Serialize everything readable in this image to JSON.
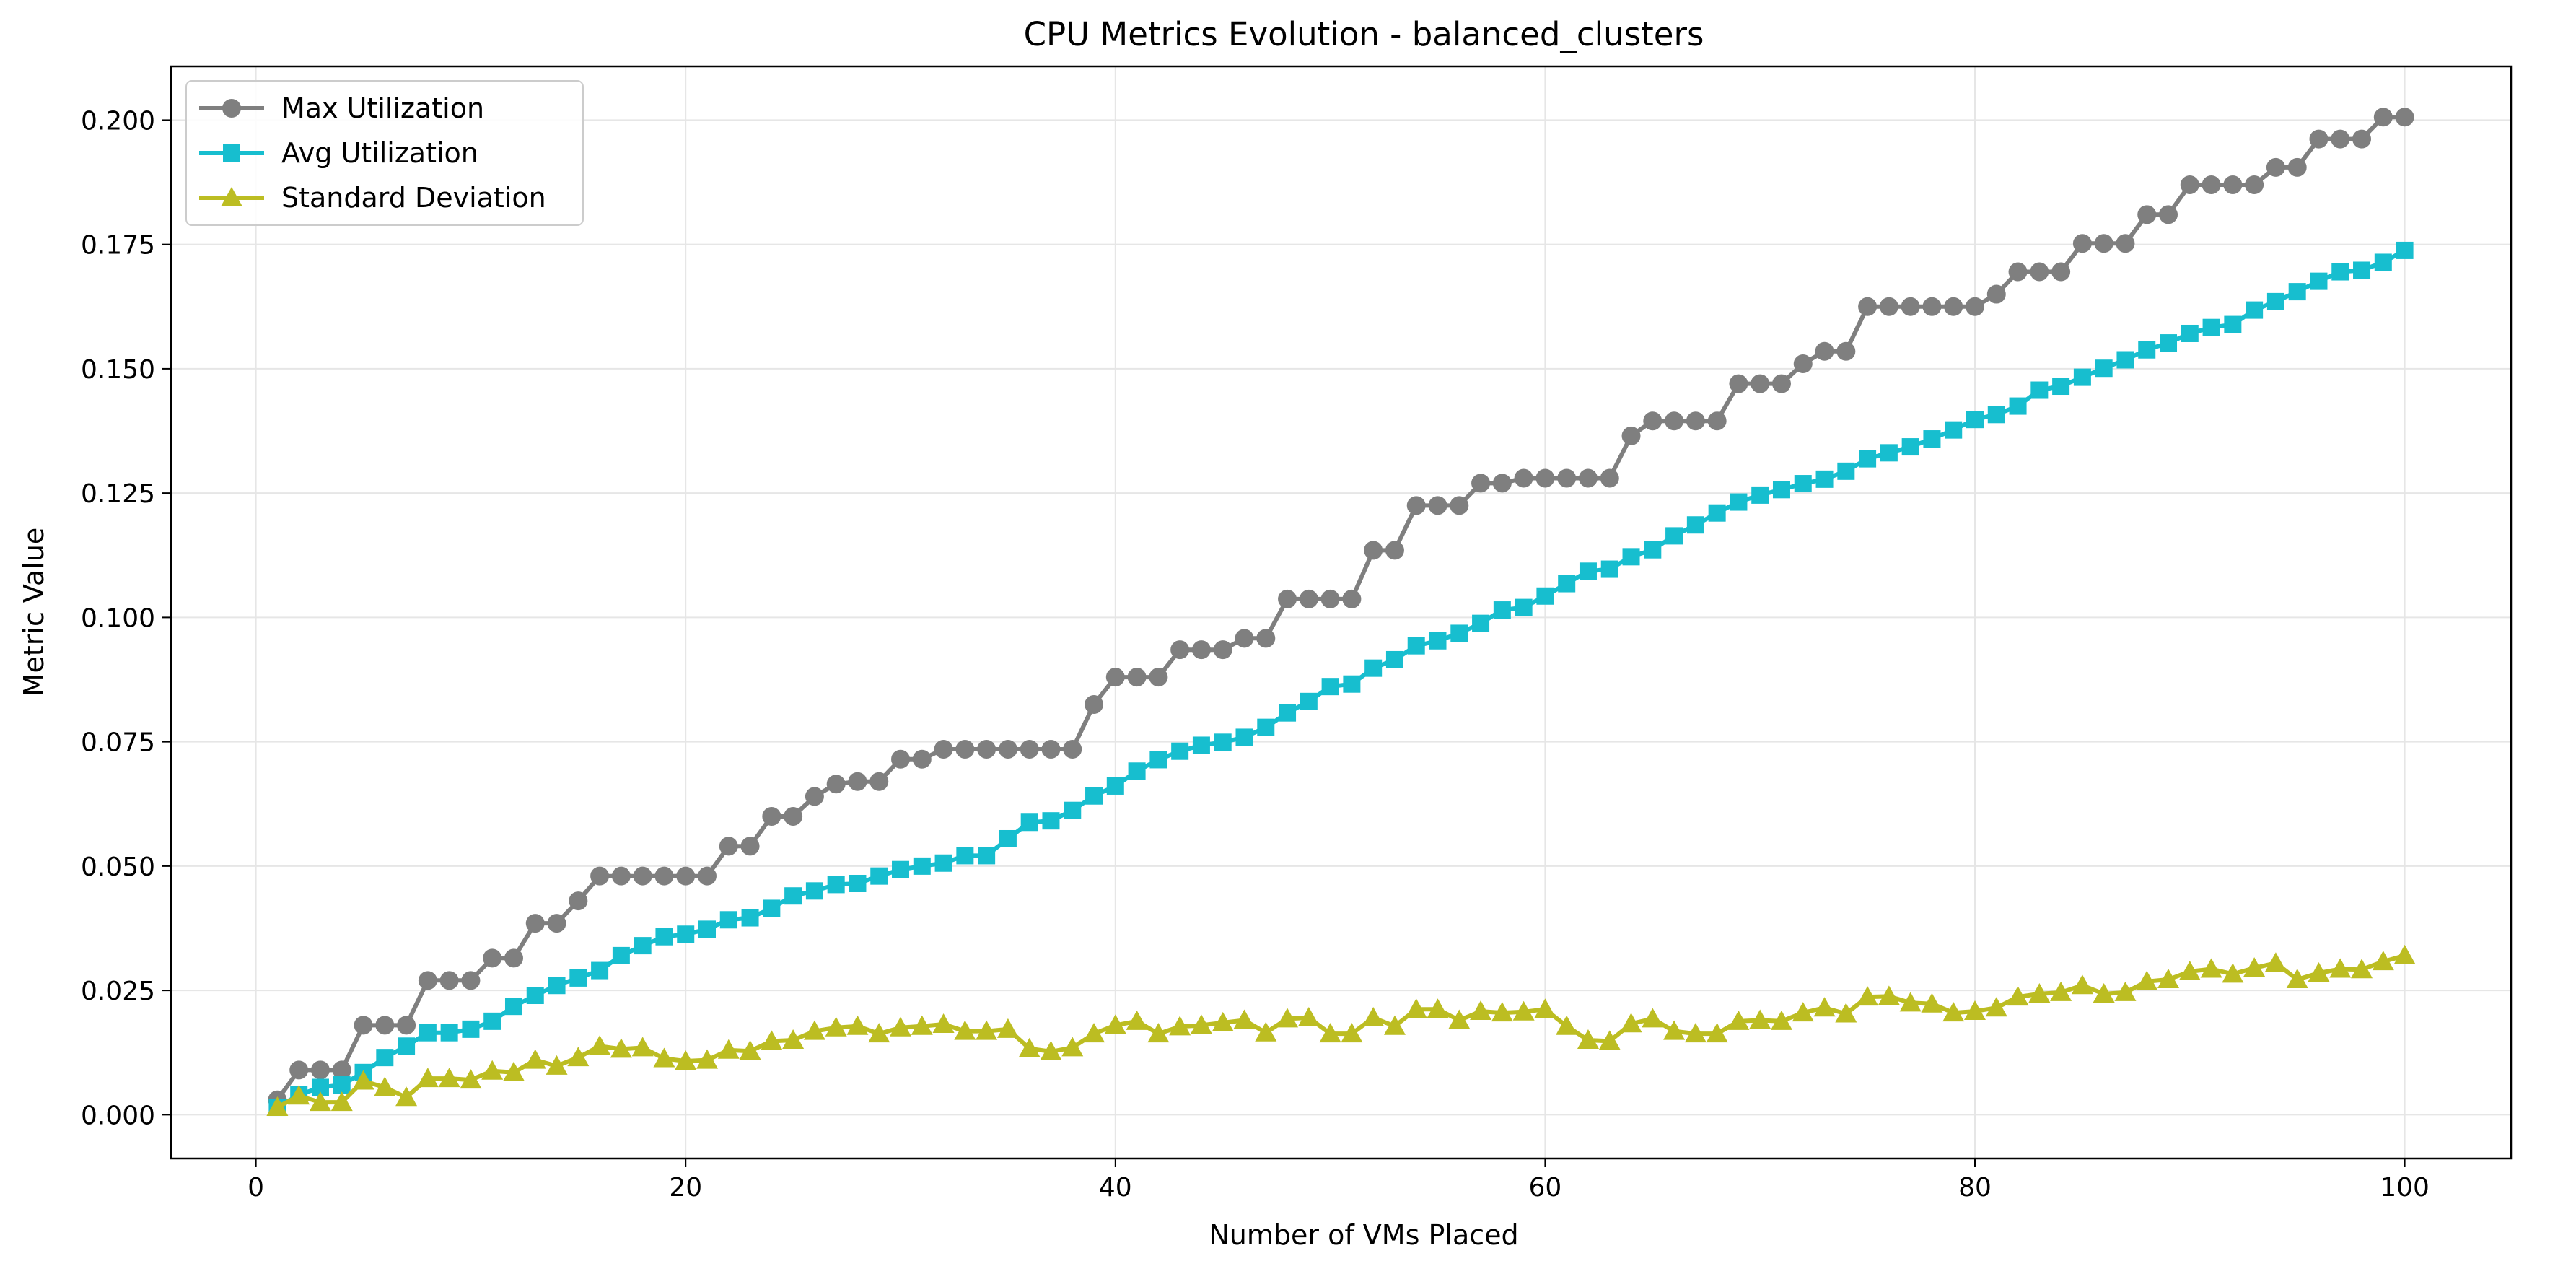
{
  "chart_data": {
    "type": "line",
    "title": "CPU Metrics Evolution - balanced_clusters",
    "xlabel": "Number of VMs Placed",
    "ylabel": "Metric Value",
    "xlim": [
      -3.95,
      104.95
    ],
    "ylim": [
      -0.0088,
      0.2108
    ],
    "xticks": [
      0,
      20,
      40,
      60,
      80,
      100
    ],
    "xtick_labels": [
      "0",
      "20",
      "40",
      "60",
      "80",
      "100"
    ],
    "yticks": [
      0,
      0.025,
      0.05,
      0.075,
      0.1,
      0.125,
      0.15,
      0.175,
      0.2
    ],
    "ytick_labels": [
      "0.000",
      "0.025",
      "0.050",
      "0.075",
      "0.100",
      "0.125",
      "0.150",
      "0.175",
      "0.200"
    ],
    "grid": true,
    "legend_position": "top-left",
    "x": [
      1,
      2,
      3,
      4,
      5,
      6,
      7,
      8,
      9,
      10,
      11,
      12,
      13,
      14,
      15,
      16,
      17,
      18,
      19,
      20,
      21,
      22,
      23,
      24,
      25,
      26,
      27,
      28,
      29,
      30,
      31,
      32,
      33,
      34,
      35,
      36,
      37,
      38,
      39,
      40,
      41,
      42,
      43,
      44,
      45,
      46,
      47,
      48,
      49,
      50,
      51,
      52,
      53,
      54,
      55,
      56,
      57,
      58,
      59,
      60,
      61,
      62,
      63,
      64,
      65,
      66,
      67,
      68,
      69,
      70,
      71,
      72,
      73,
      74,
      75,
      76,
      77,
      78,
      79,
      80,
      81,
      82,
      83,
      84,
      85,
      86,
      87,
      88,
      89,
      90,
      91,
      92,
      93,
      94,
      95,
      96,
      97,
      98,
      99,
      100
    ],
    "series": [
      {
        "name": "Max Utilization",
        "color": "#7f7f7f",
        "marker": "circle",
        "values": [
          0.003,
          0.009,
          0.009,
          0.009,
          0.018,
          0.018,
          0.018,
          0.027,
          0.027,
          0.027,
          0.0315,
          0.0315,
          0.0385,
          0.0385,
          0.043,
          0.048,
          0.048,
          0.048,
          0.048,
          0.048,
          0.048,
          0.054,
          0.054,
          0.06,
          0.06,
          0.064,
          0.0665,
          0.067,
          0.067,
          0.0715,
          0.0715,
          0.0735,
          0.0735,
          0.0735,
          0.0735,
          0.0735,
          0.0735,
          0.0735,
          0.0825,
          0.088,
          0.088,
          0.088,
          0.0935,
          0.0935,
          0.0935,
          0.0958,
          0.0958,
          0.1037,
          0.1037,
          0.1037,
          0.1037,
          0.1135,
          0.1135,
          0.1225,
          0.1225,
          0.1225,
          0.127,
          0.127,
          0.128,
          0.128,
          0.128,
          0.128,
          0.128,
          0.1365,
          0.1395,
          0.1395,
          0.1395,
          0.1395,
          0.147,
          0.147,
          0.147,
          0.151,
          0.1535,
          0.1535,
          0.1625,
          0.1625,
          0.1625,
          0.1625,
          0.1625,
          0.1625,
          0.165,
          0.1695,
          0.1695,
          0.1695,
          0.1752,
          0.1752,
          0.1752,
          0.181,
          0.181,
          0.187,
          0.187,
          0.187,
          0.187,
          0.1905,
          0.1905,
          0.1962,
          0.1962,
          0.1962,
          0.2006,
          0.2006
        ]
      },
      {
        "name": "Avg Utilization",
        "color": "#17becf",
        "marker": "square",
        "values": [
          0.0015,
          0.004,
          0.0055,
          0.006,
          0.0085,
          0.0115,
          0.0138,
          0.0165,
          0.0165,
          0.0172,
          0.0188,
          0.0218,
          0.024,
          0.026,
          0.0275,
          0.029,
          0.032,
          0.034,
          0.0358,
          0.0363,
          0.0373,
          0.0392,
          0.0396,
          0.0415,
          0.044,
          0.045,
          0.0463,
          0.0465,
          0.048,
          0.0493,
          0.05,
          0.0506,
          0.0521,
          0.0521,
          0.0555,
          0.0588,
          0.0591,
          0.0612,
          0.0641,
          0.0661,
          0.0691,
          0.0714,
          0.0731,
          0.0743,
          0.0749,
          0.0759,
          0.0779,
          0.0808,
          0.0831,
          0.0861,
          0.0866,
          0.0898,
          0.0915,
          0.0943,
          0.0953,
          0.0968,
          0.0988,
          0.1015,
          0.102,
          0.1043,
          0.1068,
          0.1093,
          0.1097,
          0.1122,
          0.1136,
          0.1164,
          0.1186,
          0.121,
          0.1232,
          0.1246,
          0.1257,
          0.1269,
          0.1278,
          0.1294,
          0.1319,
          0.1331,
          0.1343,
          0.1359,
          0.1377,
          0.1398,
          0.1408,
          0.1425,
          0.1457,
          0.1465,
          0.1483,
          0.1501,
          0.1518,
          0.1538,
          0.1552,
          0.1571,
          0.1583,
          0.1589,
          0.1618,
          0.1635,
          0.1655,
          0.1676,
          0.1695,
          0.1698,
          0.1714,
          0.1738
        ]
      },
      {
        "name": "Standard Deviation",
        "color": "#bcbd22",
        "marker": "triangle",
        "values": [
          0.0015,
          0.0038,
          0.0025,
          0.0025,
          0.0068,
          0.0055,
          0.0035,
          0.0073,
          0.0073,
          0.007,
          0.0088,
          0.0085,
          0.011,
          0.0098,
          0.0115,
          0.0138,
          0.0132,
          0.0135,
          0.0113,
          0.0108,
          0.011,
          0.013,
          0.0128,
          0.0148,
          0.015,
          0.0168,
          0.0175,
          0.0178,
          0.0163,
          0.0175,
          0.0178,
          0.0182,
          0.0168,
          0.0168,
          0.0172,
          0.0133,
          0.0127,
          0.0135,
          0.0163,
          0.018,
          0.0188,
          0.0163,
          0.0177,
          0.018,
          0.0185,
          0.019,
          0.0165,
          0.0193,
          0.0195,
          0.0163,
          0.0163,
          0.0195,
          0.0178,
          0.0212,
          0.0212,
          0.019,
          0.0208,
          0.0205,
          0.0207,
          0.0212,
          0.0178,
          0.015,
          0.0148,
          0.0183,
          0.0193,
          0.0168,
          0.0163,
          0.0163,
          0.0188,
          0.019,
          0.0188,
          0.0205,
          0.0215,
          0.0203,
          0.0237,
          0.0238,
          0.0225,
          0.0223,
          0.0205,
          0.0208,
          0.0215,
          0.0237,
          0.0243,
          0.0246,
          0.026,
          0.0243,
          0.0246,
          0.0268,
          0.0272,
          0.0288,
          0.0293,
          0.0283,
          0.0295,
          0.0305,
          0.0272,
          0.0285,
          0.0293,
          0.0292,
          0.0308,
          0.032
        ]
      }
    ]
  }
}
